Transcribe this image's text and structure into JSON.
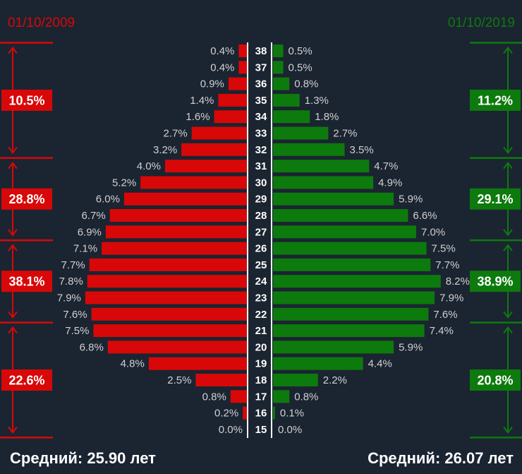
{
  "colors": {
    "left": "#d80808",
    "right": "#0d7a0d",
    "background": "#1b2431",
    "label": "#d0d0d0",
    "age": "#ffffff"
  },
  "header": {
    "left_date": "01/10/2009",
    "right_date": "01/10/2019"
  },
  "footer": {
    "left_avg_label": "Средний:",
    "left_avg_value": "25.90",
    "left_avg_unit": "лет",
    "right_avg_label": "Средний:",
    "right_avg_value": "26.07",
    "right_avg_unit": "лет"
  },
  "chart_data": {
    "type": "bar",
    "orientation": "horizontal-butterfly",
    "categories": [
      "38",
      "37",
      "36",
      "35",
      "34",
      "33",
      "32",
      "31",
      "30",
      "29",
      "28",
      "27",
      "26",
      "25",
      "24",
      "23",
      "22",
      "21",
      "20",
      "19",
      "18",
      "17",
      "16",
      "15"
    ],
    "series": [
      {
        "name": "01/10/2009",
        "side": "left",
        "values": [
          0.4,
          0.4,
          0.9,
          1.4,
          1.6,
          2.7,
          3.2,
          4.0,
          5.2,
          6.0,
          6.7,
          6.9,
          7.1,
          7.7,
          7.8,
          7.9,
          7.6,
          7.5,
          6.8,
          4.8,
          2.5,
          0.8,
          0.2,
          0.0
        ],
        "labels": [
          "0.4%",
          "0.4%",
          "0.9%",
          "1.4%",
          "1.6%",
          "2.7%",
          "3.2%",
          "4.0%",
          "5.2%",
          "6.0%",
          "6.7%",
          "6.9%",
          "7.1%",
          "7.7%",
          "7.8%",
          "7.9%",
          "7.6%",
          "7.5%",
          "6.8%",
          "4.8%",
          "2.5%",
          "0.8%",
          "0.2%",
          "0.0%"
        ]
      },
      {
        "name": "01/10/2019",
        "side": "right",
        "values": [
          0.5,
          0.5,
          0.8,
          1.3,
          1.8,
          2.7,
          3.5,
          4.7,
          4.9,
          5.9,
          6.6,
          7.0,
          7.5,
          7.7,
          8.2,
          7.9,
          7.6,
          7.4,
          5.9,
          4.4,
          2.2,
          0.8,
          0.1,
          0.0
        ],
        "labels": [
          "0.5%",
          "0.5%",
          "0.8%",
          "1.3%",
          "1.8%",
          "2.7%",
          "3.5%",
          "4.7%",
          "4.9%",
          "5.9%",
          "6.6%",
          "7.0%",
          "7.5%",
          "7.7%",
          "8.2%",
          "7.9%",
          "7.6%",
          "7.4%",
          "5.9%",
          "4.4%",
          "2.2%",
          "0.8%",
          "0.1%",
          "0.0%"
        ]
      }
    ],
    "groups_left": [
      {
        "label": "10.5%",
        "from": "38",
        "to": "32"
      },
      {
        "label": "28.8%",
        "from": "31",
        "to": "27"
      },
      {
        "label": "38.1%",
        "from": "26",
        "to": "22"
      },
      {
        "label": "22.6%",
        "from": "21",
        "to": "15"
      }
    ],
    "groups_right": [
      {
        "label": "11.2%",
        "from": "38",
        "to": "32"
      },
      {
        "label": "29.1%",
        "from": "31",
        "to": "27"
      },
      {
        "label": "38.9%",
        "from": "26",
        "to": "22"
      },
      {
        "label": "20.8%",
        "from": "21",
        "to": "15"
      }
    ]
  }
}
